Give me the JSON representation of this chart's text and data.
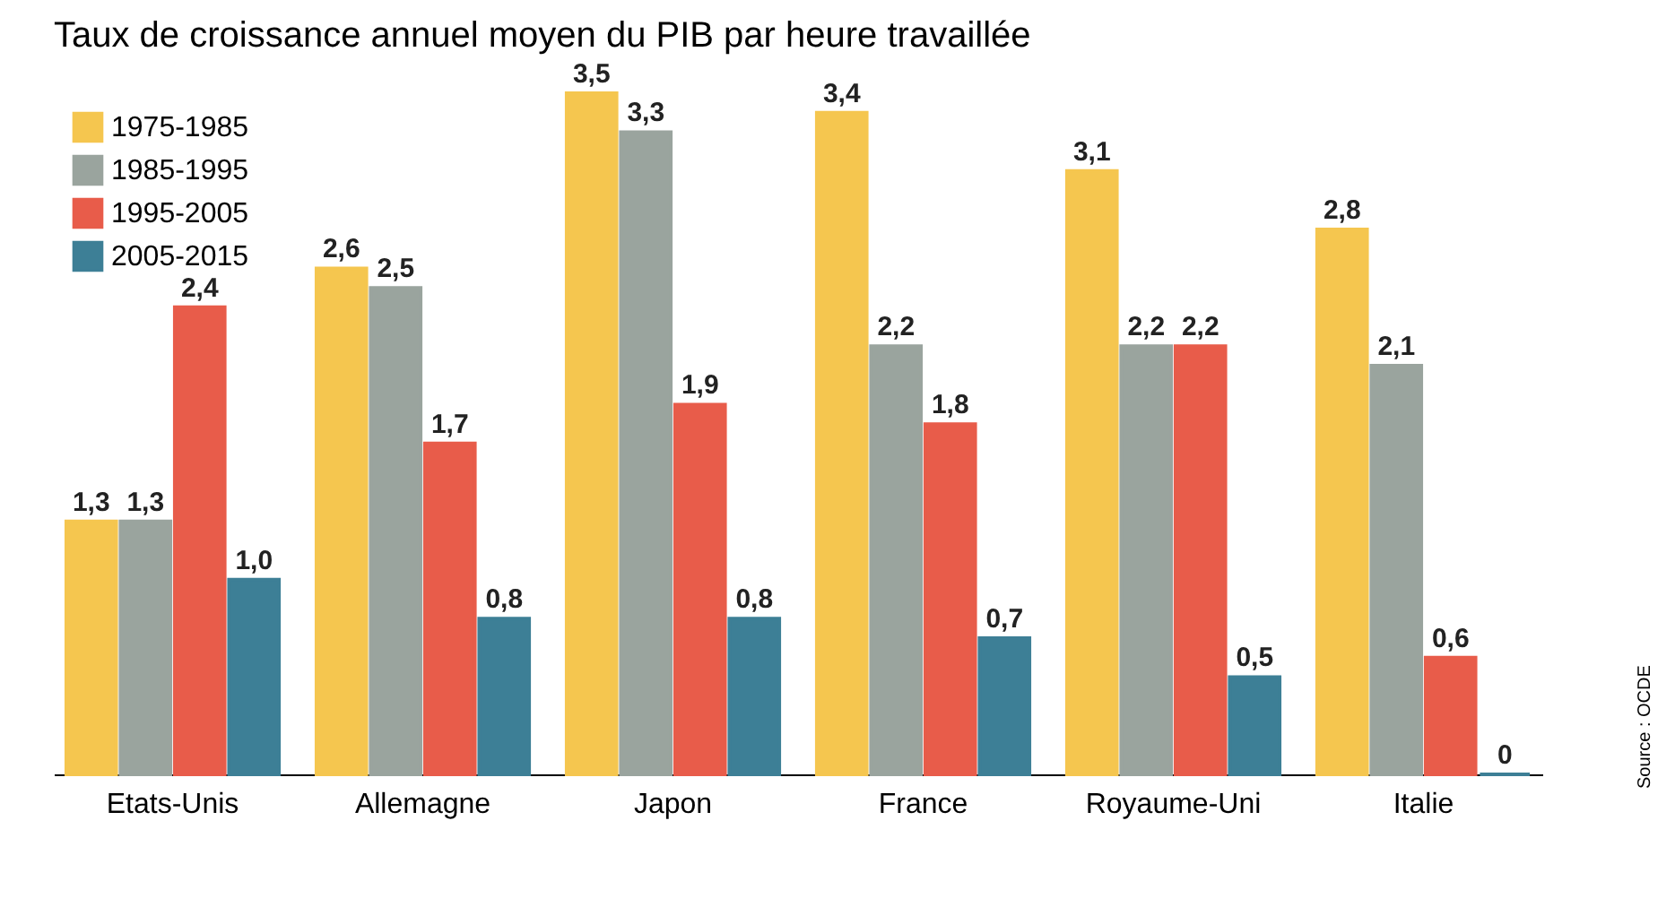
{
  "chart_data": {
    "type": "bar",
    "title": "Taux de croissance annuel moyen du PIB par heure travaillée",
    "categories": [
      "Etats-Unis",
      "Allemagne",
      "Japon",
      "France",
      "Royaume-Uni",
      "Italie"
    ],
    "series": [
      {
        "name": "1975-1985",
        "color": "#f5c64f",
        "values": [
          1.3,
          2.6,
          3.5,
          3.4,
          3.1,
          2.8
        ],
        "value_labels": [
          "1,3",
          "2,6",
          "3,5",
          "3,4",
          "3,1",
          "2,8"
        ]
      },
      {
        "name": "1985-1995",
        "color": "#9aa49e",
        "values": [
          1.3,
          2.5,
          3.3,
          2.2,
          2.2,
          2.1
        ],
        "value_labels": [
          "1,3",
          "2,5",
          "3,3",
          "2,2",
          "2,2",
          "2,1"
        ]
      },
      {
        "name": "1995-2005",
        "color": "#e85c4a",
        "values": [
          2.4,
          1.7,
          1.9,
          1.8,
          2.2,
          0.6
        ],
        "value_labels": [
          "2,4",
          "1,7",
          "1,9",
          "1,8",
          "2,2",
          "0,6"
        ]
      },
      {
        "name": "2005-2015",
        "color": "#3d7f96",
        "values": [
          1.0,
          0.8,
          0.8,
          0.7,
          0.5,
          0
        ],
        "value_labels": [
          "1,0",
          "0,8",
          "0,8",
          "0,7",
          "0,5",
          "0"
        ]
      }
    ],
    "legend": "top left",
    "grid": false,
    "annotations": [
      "Source : OCDE"
    ]
  }
}
